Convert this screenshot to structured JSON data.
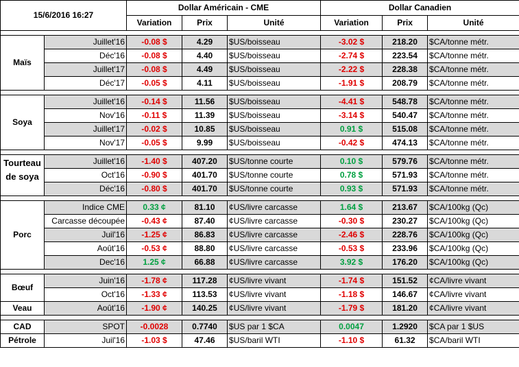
{
  "header": {
    "timestamp": "15/6/2016 16:27",
    "usd_title": "Dollar Américain - CME",
    "cad_title": "Dollar Canadien",
    "col_variation": "Variation",
    "col_prix": "Prix",
    "col_unite": "Unité"
  },
  "groups": [
    {
      "label": "Maïs",
      "rows": [
        {
          "contract": "Juillet'16",
          "usd_var": "-0.08 $",
          "usd_price": "4.29",
          "usd_unit": "$US/boisseau",
          "cad_var": "-3.02 $",
          "cad_price": "218.20",
          "cad_unit": "$CA/tonne métr.",
          "usd_sign": "neg",
          "cad_sign": "neg"
        },
        {
          "contract": "Déc'16",
          "usd_var": "-0.08 $",
          "usd_price": "4.40",
          "usd_unit": "$US/boisseau",
          "cad_var": "-2.74 $",
          "cad_price": "223.54",
          "cad_unit": "$CA/tonne métr.",
          "usd_sign": "neg",
          "cad_sign": "neg"
        },
        {
          "contract": "Juillet'17",
          "usd_var": "-0.08 $",
          "usd_price": "4.49",
          "usd_unit": "$US/boisseau",
          "cad_var": "-2.22 $",
          "cad_price": "228.38",
          "cad_unit": "$CA/tonne métr.",
          "usd_sign": "neg",
          "cad_sign": "neg"
        },
        {
          "contract": "Déc'17",
          "usd_var": "-0.05 $",
          "usd_price": "4.11",
          "usd_unit": "$US/boisseau",
          "cad_var": "-1.91 $",
          "cad_price": "208.79",
          "cad_unit": "$CA/tonne métr.",
          "usd_sign": "neg",
          "cad_sign": "neg"
        }
      ]
    },
    {
      "label": "Soya",
      "rows": [
        {
          "contract": "Juillet'16",
          "usd_var": "-0.14 $",
          "usd_price": "11.56",
          "usd_unit": "$US/boisseau",
          "cad_var": "-4.41 $",
          "cad_price": "548.78",
          "cad_unit": "$CA/tonne métr.",
          "usd_sign": "neg",
          "cad_sign": "neg"
        },
        {
          "contract": "Nov'16",
          "usd_var": "-0.11 $",
          "usd_price": "11.39",
          "usd_unit": "$US/boisseau",
          "cad_var": "-3.14 $",
          "cad_price": "540.47",
          "cad_unit": "$CA/tonne métr.",
          "usd_sign": "neg",
          "cad_sign": "neg"
        },
        {
          "contract": "Juillet'17",
          "usd_var": "-0.02 $",
          "usd_price": "10.85",
          "usd_unit": "$US/boisseau",
          "cad_var": "0.91 $",
          "cad_price": "515.08",
          "cad_unit": "$CA/tonne métr.",
          "usd_sign": "neg",
          "cad_sign": "pos"
        },
        {
          "contract": "Nov'17",
          "usd_var": "-0.05 $",
          "usd_price": "9.99",
          "usd_unit": "$US/boisseau",
          "cad_var": "-0.42 $",
          "cad_price": "474.13",
          "cad_unit": "$CA/tonne métr.",
          "usd_sign": "neg",
          "cad_sign": "neg"
        }
      ]
    },
    {
      "label": "Tourteau de soya",
      "label_lines": [
        "Tourteau",
        "de soya"
      ],
      "rows": [
        {
          "contract": "Juillet'16",
          "usd_var": "-1.40 $",
          "usd_price": "407.20",
          "usd_unit": "$US/tonne courte",
          "cad_var": "0.10 $",
          "cad_price": "579.76",
          "cad_unit": "$CA/tonne métr.",
          "usd_sign": "neg",
          "cad_sign": "pos"
        },
        {
          "contract": "Oct'16",
          "usd_var": "-0.90 $",
          "usd_price": "401.70",
          "usd_unit": "$US/tonne courte",
          "cad_var": "0.78 $",
          "cad_price": "571.93",
          "cad_unit": "$CA/tonne métr.",
          "usd_sign": "neg",
          "cad_sign": "pos"
        },
        {
          "contract": "Déc'16",
          "usd_var": "-0.80 $",
          "usd_price": "401.70",
          "usd_unit": "$US/tonne courte",
          "cad_var": "0.93 $",
          "cad_price": "571.93",
          "cad_unit": "$CA/tonne métr.",
          "usd_sign": "neg",
          "cad_sign": "pos"
        }
      ]
    },
    {
      "label": "Porc",
      "rows": [
        {
          "contract": "Indice CME",
          "usd_var": "0.33 ¢",
          "usd_price": "81.10",
          "usd_unit": "¢US/livre carcasse",
          "cad_var": "1.64 $",
          "cad_price": "213.67",
          "cad_unit": "$CA/100kg (Qc)",
          "usd_sign": "pos",
          "cad_sign": "pos"
        },
        {
          "contract": "Carcasse découpée",
          "usd_var": "-0.43 ¢",
          "usd_price": "87.40",
          "usd_unit": "¢US/livre carcasse",
          "cad_var": "-0.30 $",
          "cad_price": "230.27",
          "cad_unit": "$CA/100kg (Qc)",
          "usd_sign": "neg",
          "cad_sign": "neg"
        },
        {
          "contract": "Juil'16",
          "usd_var": "-1.25 ¢",
          "usd_price": "86.83",
          "usd_unit": "¢US/livre carcasse",
          "cad_var": "-2.46 $",
          "cad_price": "228.76",
          "cad_unit": "$CA/100kg (Qc)",
          "usd_sign": "neg",
          "cad_sign": "neg"
        },
        {
          "contract": "Août'16",
          "usd_var": "-0.53 ¢",
          "usd_price": "88.80",
          "usd_unit": "¢US/livre carcasse",
          "cad_var": "-0.53 $",
          "cad_price": "233.96",
          "cad_unit": "$CA/100kg (Qc)",
          "usd_sign": "neg",
          "cad_sign": "neg"
        },
        {
          "contract": "Dec'16",
          "usd_var": "1.25 ¢",
          "usd_price": "66.88",
          "usd_unit": "¢US/livre carcasse",
          "cad_var": "3.92 $",
          "cad_price": "176.20",
          "cad_unit": "$CA/100kg (Qc)",
          "usd_sign": "pos",
          "cad_sign": "pos"
        }
      ]
    },
    {
      "label_boeuf": "Bœuf",
      "label_veau": "Veau",
      "rows": [
        {
          "contract": "Juin'16",
          "usd_var": "-1.78 ¢",
          "usd_price": "117.28",
          "usd_unit": "¢US/livre vivant",
          "cad_var": "-1.74 $",
          "cad_price": "151.52",
          "cad_unit": "¢CA/livre vivant",
          "usd_sign": "neg",
          "cad_sign": "neg"
        },
        {
          "contract": "Oct'16",
          "usd_var": "-1.33 ¢",
          "usd_price": "113.53",
          "usd_unit": "¢US/livre vivant",
          "cad_var": "-1.18 $",
          "cad_price": "146.67",
          "cad_unit": "¢CA/livre vivant",
          "usd_sign": "neg",
          "cad_sign": "neg"
        },
        {
          "contract": "Août'16",
          "usd_var": "-1.90 ¢",
          "usd_price": "140.25",
          "usd_unit": "¢US/livre vivant",
          "cad_var": "-1.79 $",
          "cad_price": "181.20",
          "cad_unit": "¢CA/livre vivant",
          "usd_sign": "neg",
          "cad_sign": "neg"
        }
      ]
    },
    {
      "rows": [
        {
          "label": "CAD",
          "contract": "SPOT",
          "usd_var": "-0.0028",
          "usd_price": "0.7740",
          "usd_unit": "$US par 1 $CA",
          "cad_var": "0.0047",
          "cad_price": "1.2920",
          "cad_unit": "$CA par 1 $US",
          "usd_sign": "neg",
          "cad_sign": "pos"
        },
        {
          "label": "Pétrole",
          "contract": "Juil'16",
          "usd_var": "-1.03 $",
          "usd_price": "47.46",
          "usd_unit": "$US/baril WTI",
          "cad_var": "-1.10 $",
          "cad_price": "61.32",
          "cad_unit": "$CA/baril WTI",
          "usd_sign": "neg",
          "cad_sign": "neg"
        }
      ]
    }
  ]
}
